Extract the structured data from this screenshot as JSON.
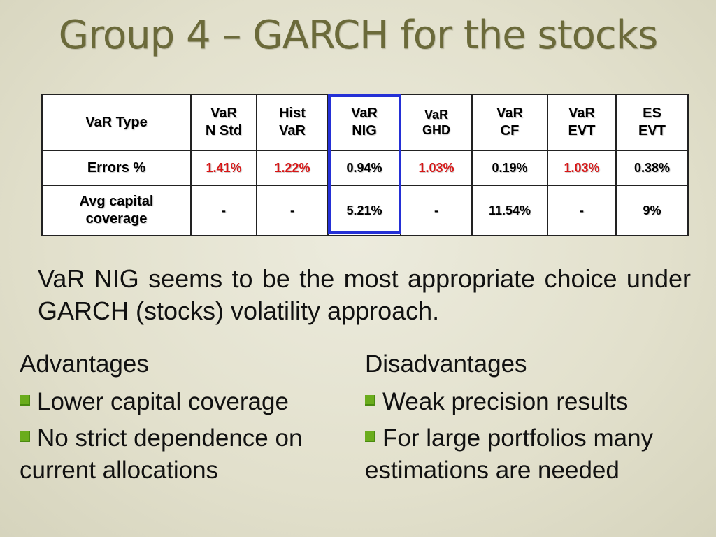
{
  "title": "Group 4 – GARCH for the stocks",
  "table": {
    "header": {
      "label": "VaR Type",
      "cols": [
        {
          "line1": "VaR",
          "line2": "N Std"
        },
        {
          "line1": "Hist",
          "line2": "VaR"
        },
        {
          "line1": "VaR",
          "line2": "NIG"
        },
        {
          "line1": "VaR",
          "line2": "GHD"
        },
        {
          "line1": "VaR",
          "line2": "CF"
        },
        {
          "line1": "VaR",
          "line2": "EVT"
        },
        {
          "line1": "ES",
          "line2": "EVT"
        }
      ]
    },
    "errors": {
      "label": "Errors %",
      "values": [
        "1.41%",
        "1.22%",
        "0.94%",
        "1.03%",
        "0.19%",
        "1.03%",
        "0.38%"
      ],
      "highlight_color": "#d81616"
    },
    "capital": {
      "label_line1": "Avg capital",
      "label_line2": "coverage",
      "values": [
        "-",
        "-",
        "5.21%",
        "-",
        "11.54%",
        "-",
        "9%"
      ]
    },
    "selected_column": "VaR NIG",
    "selected_color": "#2430d6"
  },
  "paragraph": "VaR NIG seems to be the most appropriate choice under GARCH (stocks) volatility approach.",
  "advantages": {
    "heading": "Advantages",
    "items": [
      "Lower capital coverage",
      "No strict dependence on current allocations"
    ]
  },
  "disadvantages": {
    "heading": "Disadvantages",
    "items": [
      "Weak precision results",
      "For large portfolios many estimations are needed"
    ]
  },
  "bullet_color": "#6aac1c"
}
